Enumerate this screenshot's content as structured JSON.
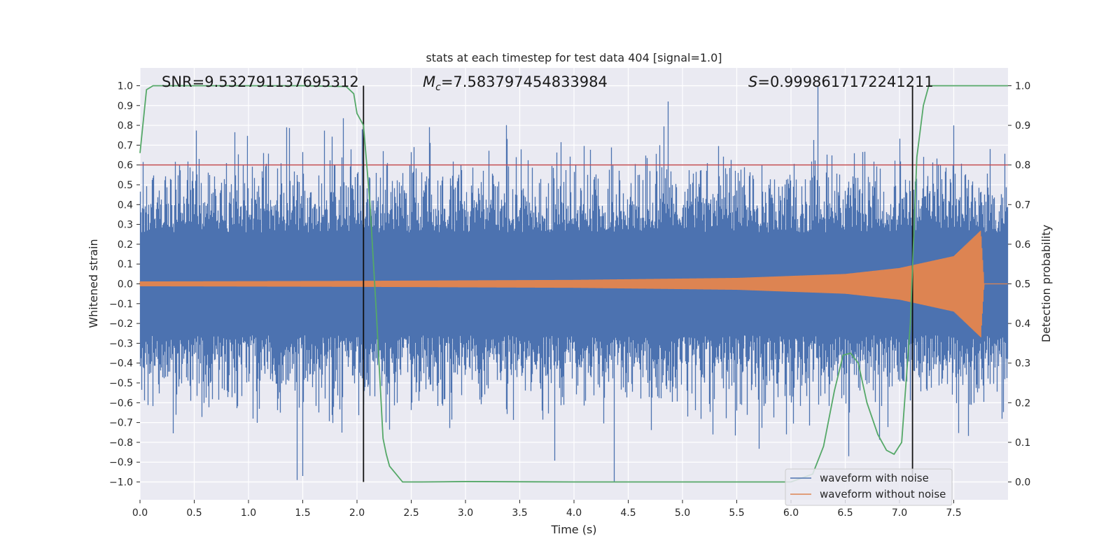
{
  "chart_data": {
    "type": "line",
    "title": "stats at each timestep for test data 404 [signal=1.0]",
    "xlabel": "Time (s)",
    "ylabel_left": "Whitened strain",
    "ylabel_right": "Detection probability",
    "xlim": [
      0.0,
      8.0
    ],
    "ylim_left": [
      -1.09,
      1.09
    ],
    "ylim_right": [
      -0.045,
      1.045
    ],
    "x_ticks": [
      "0.0",
      "0.5",
      "1.0",
      "1.5",
      "2.0",
      "2.5",
      "3.0",
      "3.5",
      "4.0",
      "4.5",
      "5.0",
      "5.5",
      "6.0",
      "6.5",
      "7.0",
      "7.5"
    ],
    "y_ticks_left": [
      "1.0",
      "0.9",
      "0.8",
      "0.7",
      "0.6",
      "0.5",
      "0.4",
      "0.3",
      "0.2",
      "0.1",
      "0.0",
      "−0.1",
      "−0.2",
      "−0.3",
      "−0.4",
      "−0.5",
      "−0.6",
      "−0.7",
      "−0.8",
      "−0.9",
      "−1.0"
    ],
    "y_ticks_right": [
      "1.0",
      "0.9",
      "0.8",
      "0.7",
      "0.6",
      "0.5",
      "0.4",
      "0.3",
      "0.2",
      "0.1",
      "0.0"
    ],
    "annotations": {
      "snr": "SNR=9.532791137695312",
      "mc_symbol": "M",
      "mc_sub": "c",
      "mc_value": "=7.583797454833984",
      "s_symbol": "S",
      "s_value": "=0.9998617172241211"
    },
    "threshold_line": {
      "y": 0.8,
      "color": "#c44e52"
    },
    "vertical_lines": [
      2.06,
      7.12
    ],
    "series": [
      {
        "name": "waveform with noise",
        "color": "#4c72b0",
        "noise_std": 0.17,
        "peaks": [
          [
            1.35,
            0.79
          ],
          [
            2.05,
            0.78
          ],
          [
            6.25,
            1.0
          ],
          [
            7.5,
            0.8
          ],
          [
            1.45,
            -0.99
          ],
          [
            1.5,
            -0.97
          ],
          [
            6.53,
            -0.87
          ]
        ]
      },
      {
        "name": "waveform without noise",
        "color": "#dd8452",
        "envelope": [
          [
            0.0,
            0.012
          ],
          [
            2.0,
            0.015
          ],
          [
            4.0,
            0.02
          ],
          [
            5.5,
            0.03
          ],
          [
            6.5,
            0.05
          ],
          [
            7.0,
            0.08
          ],
          [
            7.5,
            0.14
          ],
          [
            7.75,
            0.27
          ],
          [
            7.78,
            0.0
          ]
        ]
      },
      {
        "name": "Detection probability",
        "color": "#55a868",
        "axis": "right",
        "x": [
          0.0,
          0.06,
          0.12,
          0.5,
          1.0,
          1.5,
          1.9,
          1.97,
          2.0,
          2.06,
          2.12,
          2.18,
          2.24,
          2.27,
          2.3,
          2.36,
          2.42,
          2.6,
          3.0,
          4.0,
          5.0,
          6.0,
          6.2,
          6.3,
          6.4,
          6.48,
          6.55,
          6.62,
          6.7,
          6.8,
          6.88,
          6.95,
          7.02,
          7.1,
          7.16,
          7.22,
          7.27,
          7.5,
          8.0
        ],
        "y": [
          0.83,
          0.99,
          1.0,
          1.0,
          1.0,
          1.0,
          0.998,
          0.98,
          0.93,
          0.9,
          0.7,
          0.42,
          0.11,
          0.07,
          0.04,
          0.02,
          0.0,
          0.0,
          0.001,
          0.0,
          0.0,
          0.0,
          0.02,
          0.09,
          0.23,
          0.32,
          0.325,
          0.3,
          0.2,
          0.12,
          0.08,
          0.07,
          0.1,
          0.4,
          0.82,
          0.95,
          1.0,
          1.0,
          1.0
        ]
      }
    ],
    "legend": {
      "position": "lower-right",
      "entries": [
        "waveform with noise",
        "waveform without noise"
      ]
    },
    "grid": true
  }
}
